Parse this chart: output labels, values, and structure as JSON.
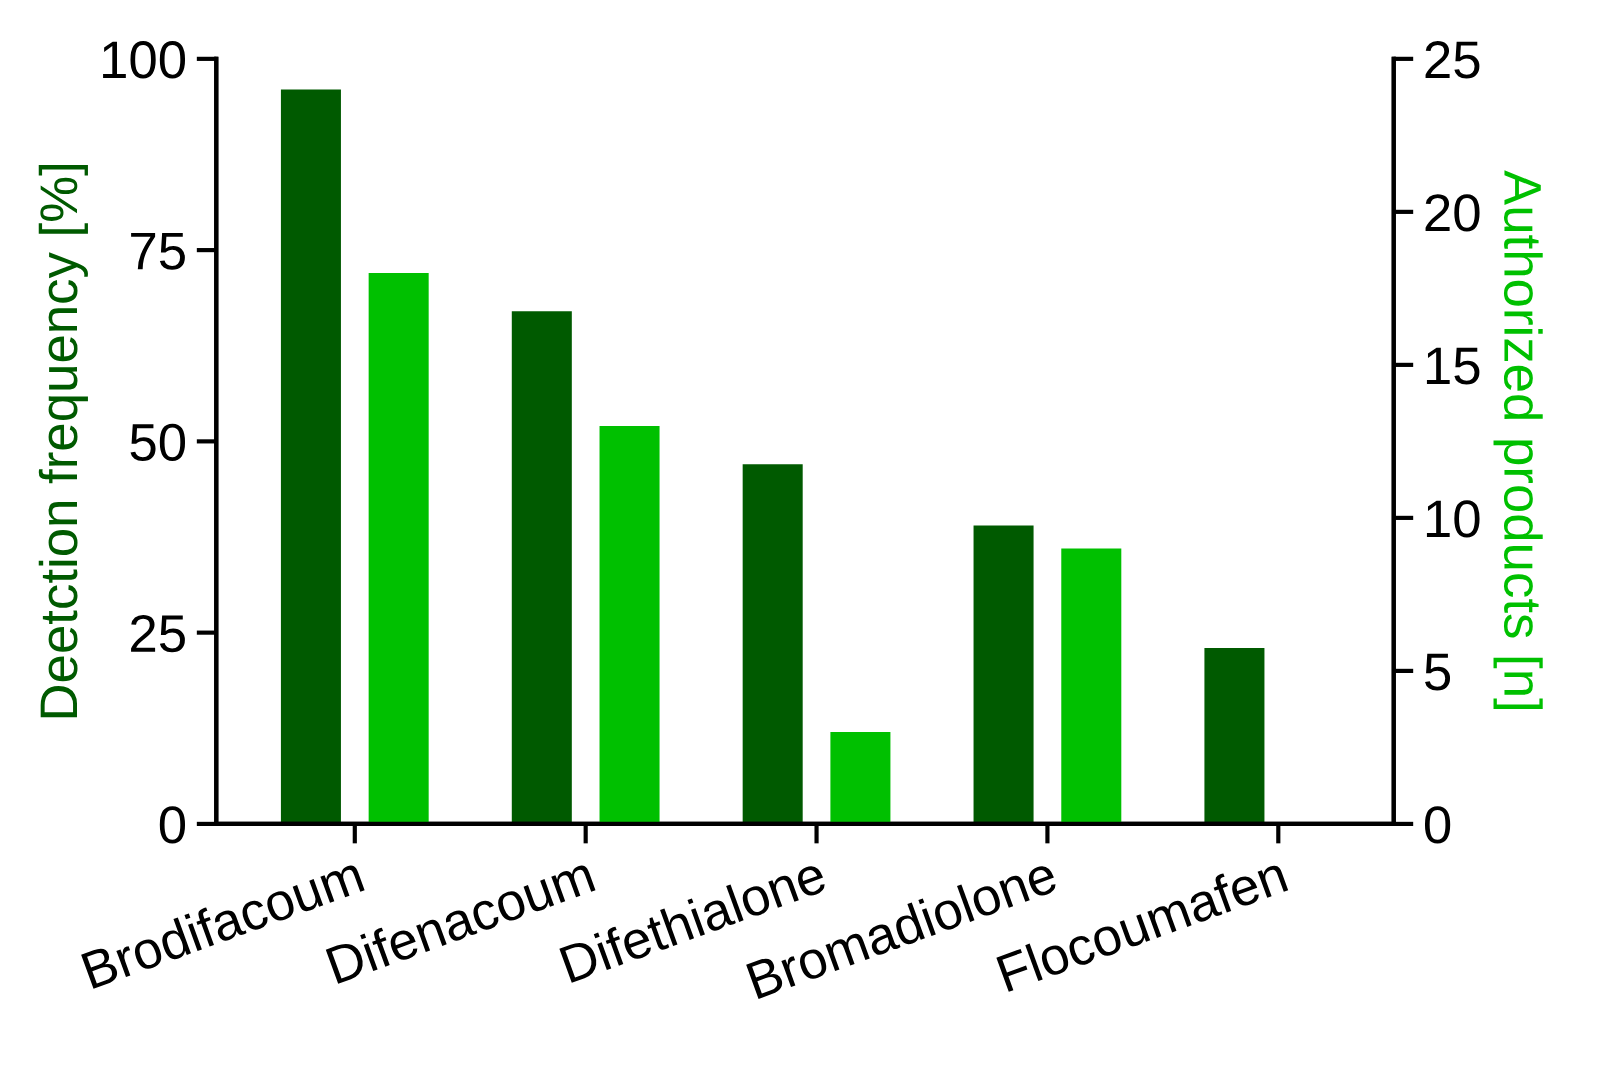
{
  "chart_data": {
    "type": "bar",
    "categories": [
      "Brodifacoum",
      "Difenacoum",
      "Difethialone",
      "Bromadiolone",
      "Flocoumafen"
    ],
    "series": [
      {
        "color": "#005a00",
        "values": [
          96,
          67,
          47,
          39,
          23
        ]
      },
      {
        "color": "#00c000",
        "values": [
          18,
          13,
          3,
          9,
          0
        ],
        "axis": "y2"
      }
    ],
    "ylabel": "Deetction frequency [%]",
    "y2label": "Authorized products [n]",
    "ylim": [
      0,
      100
    ],
    "yticks": [
      0,
      25,
      50,
      75,
      100
    ],
    "y2lim": [
      0,
      25
    ],
    "y2ticks": [
      0,
      5,
      10,
      15,
      20,
      25
    ],
    "grid": false,
    "legend": false
  }
}
